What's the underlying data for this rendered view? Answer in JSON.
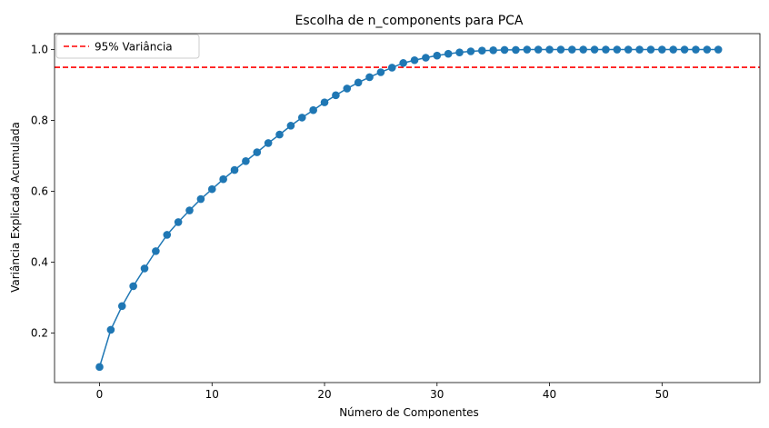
{
  "chart_data": {
    "type": "line",
    "title": "Escolha de n_components para PCA",
    "xlabel": "Número de Componentes",
    "ylabel": "Variância Explicada Acumulada",
    "xlim": [
      -4.0,
      58.7
    ],
    "ylim": [
      0.06,
      1.045
    ],
    "x_ticks": [
      0,
      10,
      20,
      30,
      40,
      50
    ],
    "y_ticks": [
      0.2,
      0.4,
      0.6,
      0.8,
      1.0
    ],
    "x_tick_labels": [
      "0",
      "10",
      "20",
      "30",
      "40",
      "50"
    ],
    "y_tick_labels": [
      "0.2",
      "0.4",
      "0.6",
      "0.8",
      "1.0"
    ],
    "grid": false,
    "legend_position": "top-left",
    "series": [
      {
        "color": "#1f77b4",
        "marker": "circle",
        "x": [
          0,
          1,
          2,
          3,
          4,
          5,
          6,
          7,
          8,
          9,
          10,
          11,
          12,
          13,
          14,
          15,
          16,
          17,
          18,
          19,
          20,
          21,
          22,
          23,
          24,
          25,
          26,
          27,
          28,
          29,
          30,
          31,
          32,
          33,
          34,
          35,
          36,
          37,
          38,
          39,
          40,
          41,
          42,
          43,
          44,
          45,
          46,
          47,
          48,
          49,
          50,
          51,
          52,
          53,
          54,
          55
        ],
        "values": [
          0.104,
          0.209,
          0.276,
          0.332,
          0.382,
          0.431,
          0.477,
          0.513,
          0.546,
          0.578,
          0.606,
          0.634,
          0.66,
          0.685,
          0.71,
          0.736,
          0.76,
          0.785,
          0.808,
          0.829,
          0.851,
          0.871,
          0.89,
          0.907,
          0.922,
          0.936,
          0.949,
          0.962,
          0.97,
          0.977,
          0.983,
          0.988,
          0.992,
          0.995,
          0.997,
          0.998,
          0.999,
          0.999,
          1.0,
          1.0,
          1.0,
          1.0,
          1.0,
          1.0,
          1.0,
          1.0,
          1.0,
          1.0,
          1.0,
          1.0,
          1.0,
          1.0,
          1.0,
          1.0,
          1.0,
          1.0
        ]
      }
    ],
    "reference_line": {
      "name": "95% Variância",
      "y": 0.95,
      "color": "#ff0000",
      "style": "dashed"
    }
  }
}
